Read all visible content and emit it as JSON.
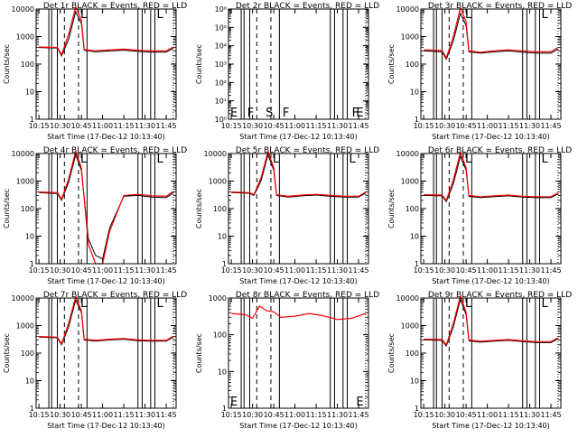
{
  "colors": {
    "events": "#000000",
    "lld": "#ff0000",
    "background": "#ffffff"
  },
  "chart_data": [
    {
      "type": "line",
      "title": "Det 1r BLACK = Events, RED = LLD",
      "xlabel": "Start Time (17-Dec-12 10:13:40)",
      "ylabel": "Counts/sec",
      "xticks": [
        "10:15",
        "10:30",
        "10:45",
        "11:00",
        "11:15",
        "11:30",
        "11:45"
      ],
      "ylim": [
        1,
        10000
      ],
      "yscale": "log",
      "ytick_labels": [
        "1",
        "10",
        "100",
        "1000",
        "10000"
      ],
      "markers": [
        "L",
        "L"
      ],
      "series": [
        {
          "name": "Events",
          "color": "#000000",
          "x": [
            "10:15",
            "10:28",
            "10:31",
            "10:36",
            "10:41",
            "10:45",
            "10:47",
            "10:55",
            "11:05",
            "11:15",
            "11:25",
            "11:35",
            "11:45",
            "11:50"
          ],
          "y": [
            400,
            380,
            200,
            800,
            8000,
            3000,
            320,
            280,
            300,
            320,
            290,
            270,
            270,
            380
          ]
        },
        {
          "name": "LLD",
          "color": "#ff0000",
          "x": [
            "10:15",
            "10:28",
            "10:31",
            "10:36",
            "10:41",
            "10:45",
            "10:47",
            "10:55",
            "11:05",
            "11:15",
            "11:25",
            "11:35",
            "11:45",
            "11:50"
          ],
          "y": [
            420,
            400,
            220,
            1200,
            12000,
            4000,
            340,
            300,
            330,
            350,
            320,
            300,
            300,
            420
          ]
        }
      ]
    },
    {
      "type": "line",
      "title": "Det 2r BLACK = Events, RED = LLD",
      "xlabel": "Start Time (17-Dec-12 10:13:40)",
      "ylabel": "Counts/sec",
      "xticks": [
        "10:15",
        "10:30",
        "10:45",
        "11:00",
        "11:15",
        "11:30",
        "11:45"
      ],
      "ylim": [
        1,
        1000000
      ],
      "yscale": "log",
      "ytick_labels": [
        "10⁰",
        "10¹",
        "10²",
        "10³",
        "10⁴",
        "10⁵",
        "10⁶"
      ],
      "markers": [
        "E",
        "F",
        "S",
        "F",
        "F",
        "E"
      ],
      "series": []
    },
    {
      "type": "line",
      "title": "Det 3r BLACK = Events, RED = LLD",
      "xlabel": "Start Time (17-Dec-12 10:13:40)",
      "ylabel": "Counts/sec",
      "xticks": [
        "10:15",
        "10:30",
        "10:45",
        "11:00",
        "11:15",
        "11:30",
        "11:45"
      ],
      "ylim": [
        1,
        10000
      ],
      "yscale": "log",
      "ytick_labels": [
        "1",
        "10",
        "100",
        "1000",
        "10000"
      ],
      "markers": [
        "L",
        "L"
      ],
      "series": [
        {
          "name": "Events",
          "color": "#000000",
          "x": [
            "10:15",
            "10:28",
            "10:31",
            "10:36",
            "10:41",
            "10:45",
            "10:47",
            "10:55",
            "11:05",
            "11:15",
            "11:25",
            "11:35",
            "11:45",
            "11:50"
          ],
          "y": [
            300,
            280,
            150,
            700,
            7000,
            2500,
            280,
            250,
            280,
            300,
            270,
            250,
            250,
            350
          ]
        },
        {
          "name": "LLD",
          "color": "#ff0000",
          "x": [
            "10:15",
            "10:28",
            "10:31",
            "10:36",
            "10:41",
            "10:45",
            "10:47",
            "10:55",
            "11:05",
            "11:15",
            "11:25",
            "11:35",
            "11:45",
            "11:50"
          ],
          "y": [
            330,
            310,
            170,
            1000,
            11000,
            3500,
            300,
            270,
            300,
            330,
            300,
            280,
            280,
            400
          ]
        }
      ]
    },
    {
      "type": "line",
      "title": "Det 4r BLACK = Events, RED = LLD",
      "xlabel": "Start Time (17-Dec-12 10:13:40)",
      "ylabel": "Counts/sec",
      "xticks": [
        "10:15",
        "10:30",
        "10:45",
        "11:00",
        "11:15",
        "11:30",
        "11:45"
      ],
      "ylim": [
        1,
        10000
      ],
      "yscale": "log",
      "ytick_labels": [
        "1",
        "10",
        "100",
        "1000",
        "10000"
      ],
      "markers": [
        "L",
        "L"
      ],
      "series": [
        {
          "name": "Events",
          "color": "#000000",
          "x": [
            "10:15",
            "10:28",
            "10:31",
            "10:36",
            "10:41",
            "10:45",
            "10:50",
            "10:55",
            "11:00",
            "11:05",
            "11:15",
            "11:25",
            "11:35",
            "11:45",
            "11:50"
          ],
          "y": [
            380,
            350,
            200,
            900,
            9000,
            2500,
            8,
            2,
            1.5,
            20,
            280,
            300,
            260,
            250,
            380
          ]
        },
        {
          "name": "LLD",
          "color": "#ff0000",
          "x": [
            "10:15",
            "10:28",
            "10:31",
            "10:36",
            "10:41",
            "10:45",
            "10:50",
            "10:55",
            "11:00",
            "11:05",
            "11:15",
            "11:25",
            "11:35",
            "11:45",
            "11:50"
          ],
          "y": [
            400,
            380,
            220,
            1200,
            12000,
            3000,
            5,
            1,
            1,
            15,
            300,
            330,
            290,
            280,
            420
          ]
        }
      ]
    },
    {
      "type": "line",
      "title": "Det 5r BLACK = Events, RED = LLD",
      "xlabel": "Start Time (17-Dec-12 10:13:40)",
      "ylabel": "Counts/sec",
      "xticks": [
        "10:15",
        "10:30",
        "10:45",
        "11:00",
        "11:15",
        "11:30",
        "11:45"
      ],
      "ylim": [
        1,
        10000
      ],
      "yscale": "log",
      "ytick_labels": [
        "1",
        "10",
        "100",
        "1000",
        "10000"
      ],
      "markers": [
        "L",
        "L"
      ],
      "series": [
        {
          "name": "Events",
          "color": "#000000",
          "x": [
            "10:15",
            "10:28",
            "10:31",
            "10:36",
            "10:41",
            "10:45",
            "10:47",
            "10:55",
            "11:05",
            "11:15",
            "11:25",
            "11:35",
            "11:45",
            "11:50"
          ],
          "y": [
            380,
            360,
            300,
            1000,
            9000,
            2500,
            300,
            260,
            290,
            310,
            280,
            260,
            260,
            370
          ]
        },
        {
          "name": "LLD",
          "color": "#ff0000",
          "x": [
            "10:15",
            "10:28",
            "10:31",
            "10:36",
            "10:41",
            "10:45",
            "10:47",
            "10:55",
            "11:05",
            "11:15",
            "11:25",
            "11:35",
            "11:45",
            "11:50"
          ],
          "y": [
            400,
            380,
            320,
            1300,
            12000,
            3000,
            320,
            280,
            310,
            330,
            300,
            280,
            280,
            400
          ]
        }
      ]
    },
    {
      "type": "line",
      "title": "Det 6r BLACK = Events, RED = LLD",
      "xlabel": "Start Time (17-Dec-12 10:13:40)",
      "ylabel": "Counts/sec",
      "xticks": [
        "10:15",
        "10:30",
        "10:45",
        "11:00",
        "11:15",
        "11:30",
        "11:45"
      ],
      "ylim": [
        1,
        10000
      ],
      "yscale": "log",
      "ytick_labels": [
        "1",
        "10",
        "100",
        "1000",
        "10000"
      ],
      "markers": [
        "L",
        "L"
      ],
      "series": [
        {
          "name": "Events",
          "color": "#000000",
          "x": [
            "10:15",
            "10:28",
            "10:31",
            "10:36",
            "10:41",
            "10:45",
            "10:47",
            "10:55",
            "11:05",
            "11:15",
            "11:25",
            "11:35",
            "11:45",
            "11:50"
          ],
          "y": [
            300,
            290,
            180,
            800,
            8000,
            2500,
            280,
            250,
            270,
            290,
            260,
            250,
            250,
            340
          ]
        },
        {
          "name": "LLD",
          "color": "#ff0000",
          "x": [
            "10:15",
            "10:28",
            "10:31",
            "10:36",
            "10:41",
            "10:45",
            "10:47",
            "10:55",
            "11:05",
            "11:15",
            "11:25",
            "11:35",
            "11:45",
            "11:50"
          ],
          "y": [
            320,
            310,
            200,
            1100,
            11000,
            3000,
            300,
            270,
            290,
            310,
            280,
            270,
            270,
            370
          ]
        }
      ]
    },
    {
      "type": "line",
      "title": "Det 7r BLACK = Events, RED = LLD",
      "xlabel": "Start Time (17-Dec-12 10:13:40)",
      "ylabel": "Counts/sec",
      "xticks": [
        "10:15",
        "10:30",
        "10:45",
        "11:00",
        "11:15",
        "11:30",
        "11:45"
      ],
      "ylim": [
        1,
        10000
      ],
      "yscale": "log",
      "ytick_labels": [
        "1",
        "10",
        "100",
        "1000",
        "10000"
      ],
      "markers": [
        "L",
        "L"
      ],
      "series": [
        {
          "name": "Events",
          "color": "#000000",
          "x": [
            "10:15",
            "10:28",
            "10:31",
            "10:36",
            "10:41",
            "10:45",
            "10:47",
            "10:55",
            "11:05",
            "11:15",
            "11:25",
            "11:35",
            "11:45",
            "11:50"
          ],
          "y": [
            380,
            360,
            200,
            900,
            8500,
            3000,
            300,
            270,
            300,
            320,
            280,
            270,
            270,
            380
          ]
        },
        {
          "name": "LLD",
          "color": "#ff0000",
          "x": [
            "10:15",
            "10:28",
            "10:31",
            "10:36",
            "10:41",
            "10:45",
            "10:47",
            "10:55",
            "11:05",
            "11:15",
            "11:25",
            "11:35",
            "11:45",
            "11:50"
          ],
          "y": [
            400,
            380,
            220,
            1200,
            11000,
            3500,
            320,
            290,
            320,
            340,
            300,
            290,
            290,
            410
          ]
        }
      ]
    },
    {
      "type": "line",
      "title": "Det 8r BLACK = Events, RED = LLD",
      "xlabel": "Start Time (17-Dec-12 10:13:40)",
      "ylabel": "Counts/sec",
      "xticks": [
        "10:15",
        "10:30",
        "10:45",
        "11:00",
        "11:15",
        "11:30",
        "11:45"
      ],
      "ylim": [
        1,
        1000
      ],
      "yscale": "log",
      "ytick_labels": [
        "1",
        "10",
        "100",
        "1000"
      ],
      "markers": [
        "E",
        "E"
      ],
      "series": [
        {
          "name": "LLD",
          "color": "#ff0000",
          "x": [
            "10:15",
            "10:25",
            "10:30",
            "10:35",
            "10:40",
            "10:45",
            "10:50",
            "11:00",
            "11:10",
            "11:20",
            "11:30",
            "11:40",
            "11:50"
          ],
          "y": [
            380,
            350,
            280,
            600,
            450,
            420,
            300,
            320,
            380,
            330,
            260,
            280,
            380
          ]
        }
      ]
    },
    {
      "type": "line",
      "title": "Det 9r BLACK = Events, RED = LLD",
      "xlabel": "Start Time (17-Dec-12 10:13:40)",
      "ylabel": "Counts/sec",
      "xticks": [
        "10:15",
        "10:30",
        "10:45",
        "11:00",
        "11:15",
        "11:30",
        "11:45"
      ],
      "ylim": [
        1,
        10000
      ],
      "yscale": "log",
      "ytick_labels": [
        "1",
        "10",
        "100",
        "1000",
        "10000"
      ],
      "markers": [
        "L",
        "L"
      ],
      "series": [
        {
          "name": "Events",
          "color": "#000000",
          "x": [
            "10:15",
            "10:28",
            "10:31",
            "10:36",
            "10:41",
            "10:45",
            "10:47",
            "10:55",
            "11:05",
            "11:15",
            "11:25",
            "11:35",
            "11:45",
            "11:50"
          ],
          "y": [
            300,
            290,
            180,
            900,
            9000,
            2500,
            280,
            250,
            270,
            290,
            260,
            240,
            240,
            330
          ]
        },
        {
          "name": "LLD",
          "color": "#ff0000",
          "x": [
            "10:15",
            "10:28",
            "10:31",
            "10:36",
            "10:41",
            "10:45",
            "10:47",
            "10:55",
            "11:05",
            "11:15",
            "11:25",
            "11:35",
            "11:45",
            "11:50"
          ],
          "y": [
            320,
            310,
            200,
            1200,
            12000,
            3000,
            300,
            270,
            290,
            310,
            280,
            260,
            260,
            360
          ]
        }
      ]
    }
  ]
}
